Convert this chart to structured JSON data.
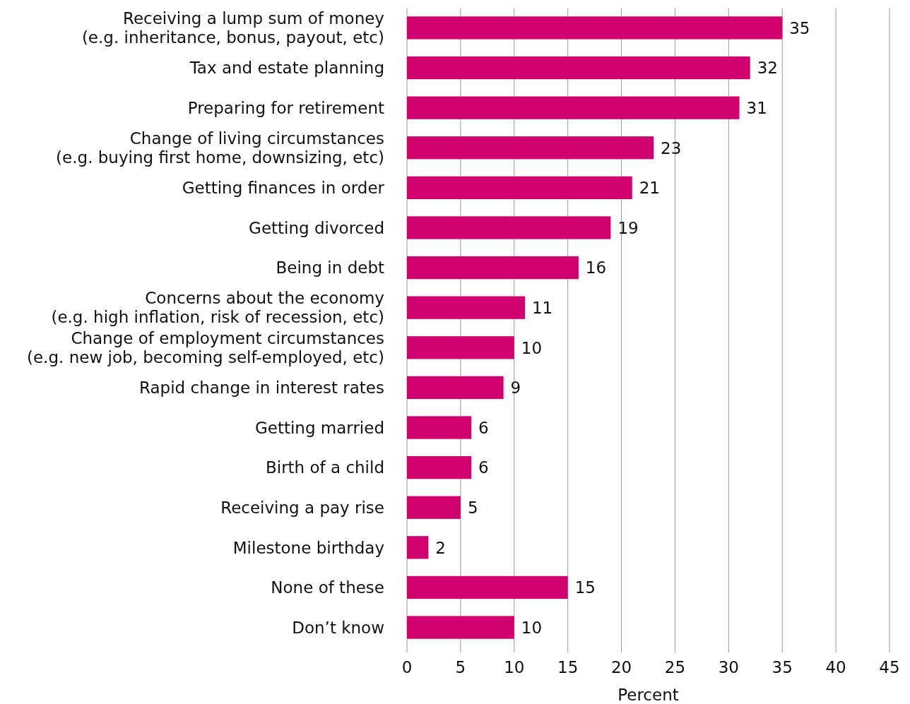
{
  "chart_data": {
    "type": "bar",
    "orientation": "horizontal",
    "xlabel": "Percent",
    "categories": [
      "Receiving a lump sum of money\n(e.g. inheritance, bonus, payout, etc)",
      "Tax and estate planning",
      "Preparing for retirement",
      "Change of living circumstances\n(e.g. buying first home, downsizing, etc)",
      "Getting finances in order",
      "Getting divorced",
      "Being in debt",
      "Concerns about the economy\n(e.g. high inflation, risk of recession, etc)",
      "Change of employment circumstances\n(e.g. new job, becoming self-employed, etc)",
      "Rapid change in interest rates",
      "Getting married",
      "Birth of a child",
      "Receiving a pay rise",
      "Milestone birthday",
      "None of these",
      "Don’t know"
    ],
    "values": [
      35,
      32,
      31,
      23,
      21,
      19,
      16,
      11,
      10,
      9,
      6,
      6,
      5,
      2,
      15,
      10
    ],
    "color": "#d1006f",
    "xlim": [
      0,
      45
    ],
    "xticks": [
      0,
      5,
      10,
      15,
      20,
      25,
      30,
      35,
      40,
      45
    ],
    "grid": "x",
    "data_labels": true
  }
}
